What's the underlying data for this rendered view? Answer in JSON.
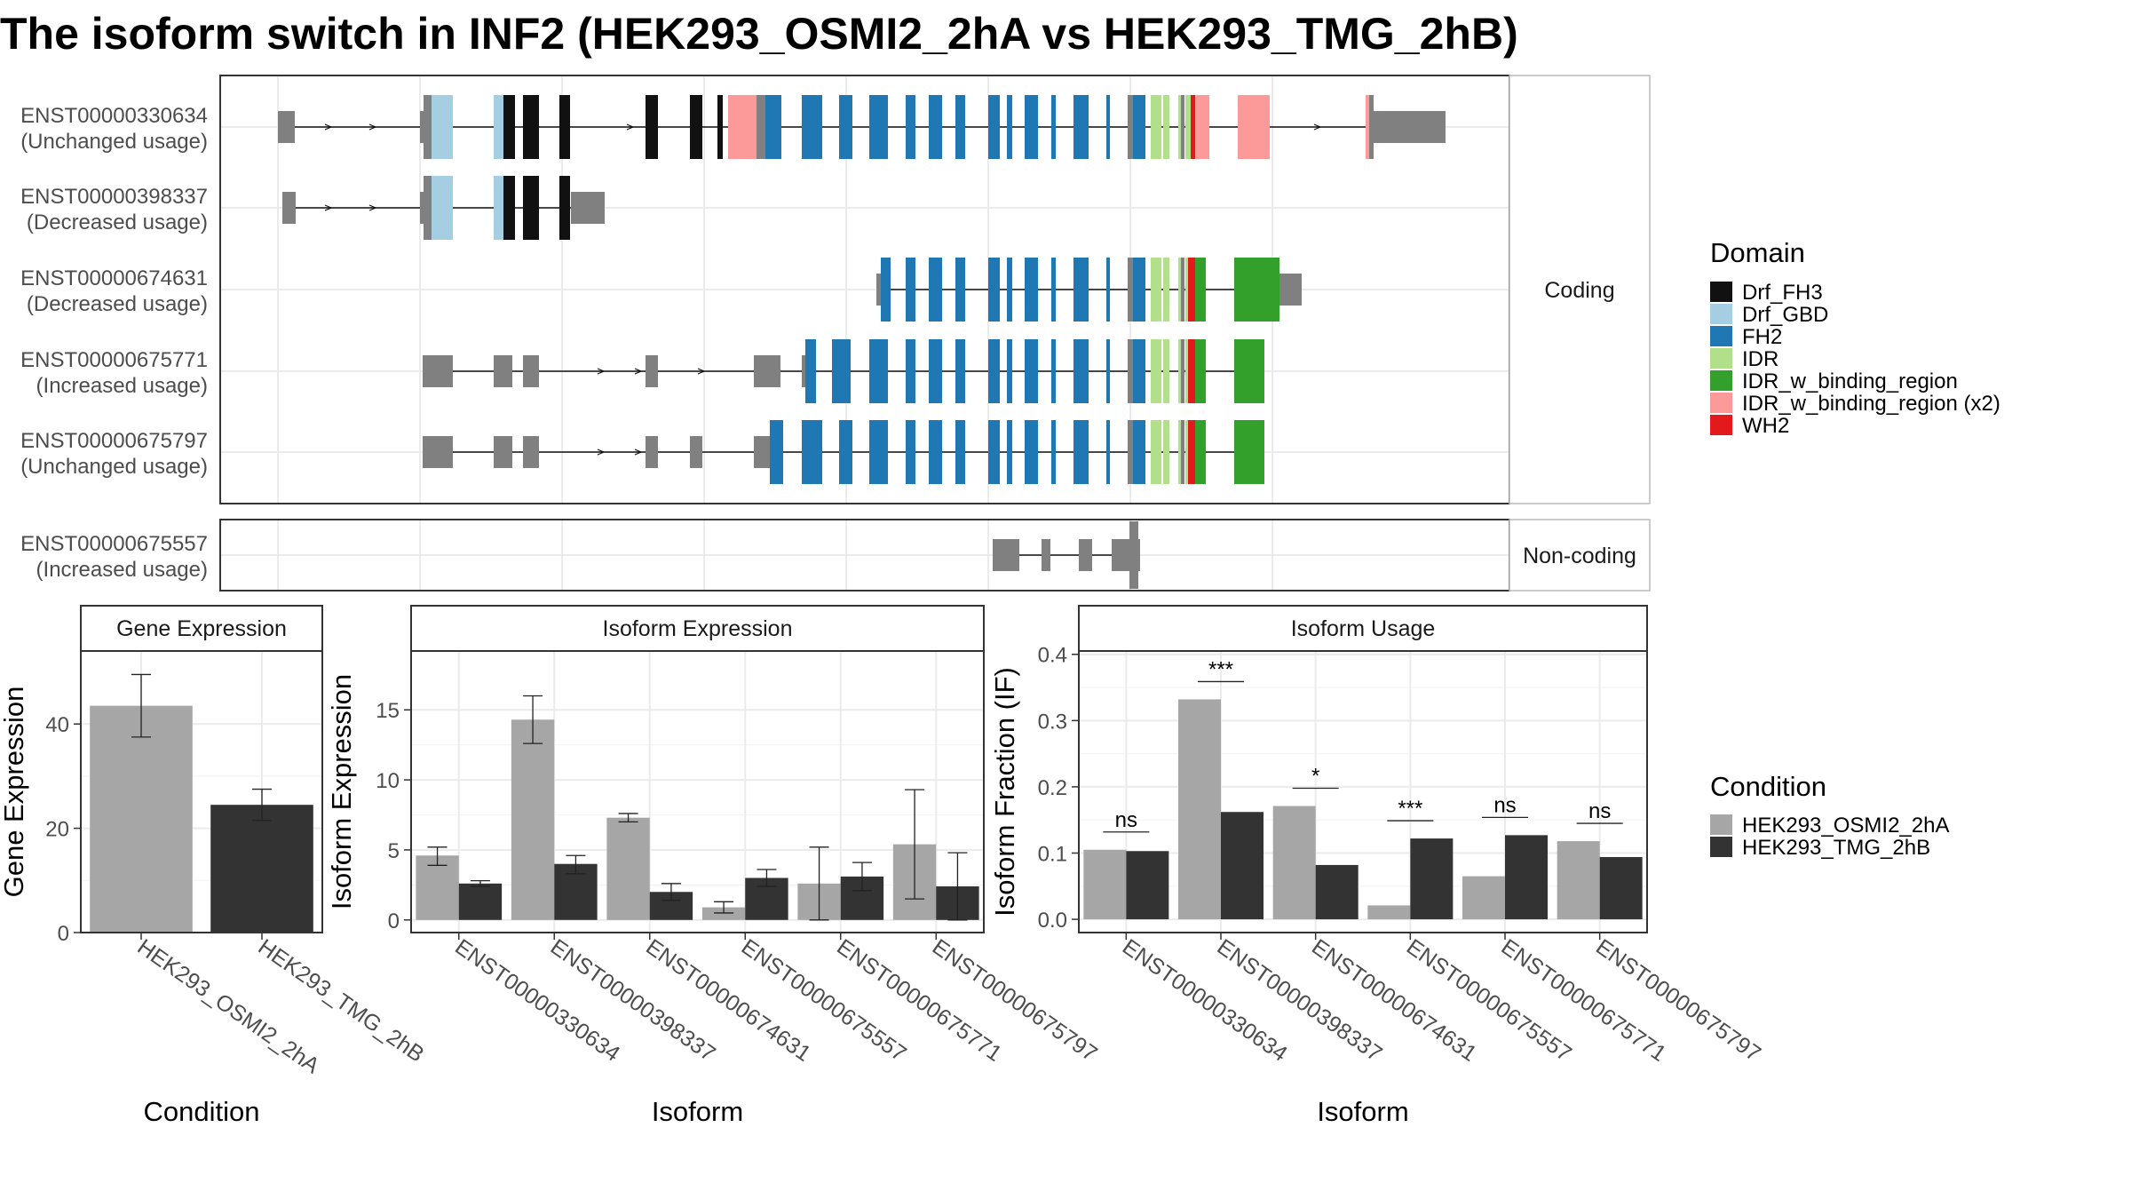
{
  "title": "The isoform switch in INF2 (HEK293_OSMI2_2hA vs HEK293_TMG_2hB)",
  "colors": {
    "condition_a": "#a6a6a6",
    "condition_b": "#333333",
    "utr": "#808080",
    "frame_stroke": "#333333",
    "grid": "#ebebeb"
  },
  "structure_panel": {
    "coding_strip": "Coding",
    "noncoding_strip": "Non-coding",
    "coding_transcripts": [
      {
        "id": "ENST00000330634",
        "status": "(Unchanged usage)"
      },
      {
        "id": "ENST00000398337",
        "status": "(Decreased usage)"
      },
      {
        "id": "ENST00000674631",
        "status": "(Decreased usage)"
      },
      {
        "id": "ENST00000675771",
        "status": "(Increased usage)"
      },
      {
        "id": "ENST00000675797",
        "status": "(Unchanged usage)"
      }
    ],
    "noncoding_transcripts": [
      {
        "id": "ENST00000675557",
        "status": "(Increased usage)"
      }
    ]
  },
  "domain_legend": {
    "title": "Domain",
    "items": [
      {
        "label": "Drf_FH3",
        "color": "#111111"
      },
      {
        "label": "Drf_GBD",
        "color": "#a6cee3"
      },
      {
        "label": "FH2",
        "color": "#1f78b4"
      },
      {
        "label": "IDR",
        "color": "#b2df8a"
      },
      {
        "label": "IDR_w_binding_region",
        "color": "#33a02c"
      },
      {
        "label": "IDR_w_binding_region (x2)",
        "color": "#fb9a99"
      },
      {
        "label": "WH2",
        "color": "#e31a1c"
      }
    ]
  },
  "condition_legend": {
    "title": "Condition",
    "items": [
      {
        "label": "HEK293_OSMI2_2hA",
        "color": "#a6a6a6"
      },
      {
        "label": "HEK293_TMG_2hB",
        "color": "#333333"
      }
    ]
  },
  "chart_data": [
    {
      "type": "bar",
      "title": "Gene Expression",
      "xlabel": "Condition",
      "ylabel": "Gene Expression",
      "categories": [
        "HEK293_OSMI2_2hA",
        "HEK293_TMG_2hB"
      ],
      "values": [
        43.5,
        24.5
      ],
      "errors": [
        [
          37.5,
          49.5
        ],
        [
          21.5,
          27.5
        ]
      ],
      "yticks": [
        0,
        20,
        40
      ],
      "ylim": [
        0,
        54
      ],
      "grid": true
    },
    {
      "type": "bar",
      "title": "Isoform Expression",
      "xlabel": "Isoform",
      "ylabel": "Isoform Expression",
      "categories": [
        "ENST00000330634",
        "ENST00000398337",
        "ENST00000674631",
        "ENST00000675557",
        "ENST00000675771",
        "ENST00000675797"
      ],
      "series": [
        {
          "name": "HEK293_OSMI2_2hA",
          "values": [
            4.6,
            14.3,
            7.3,
            0.9,
            2.6,
            5.4
          ],
          "errors": [
            [
              3.9,
              5.2
            ],
            [
              12.6,
              16.0
            ],
            [
              7.0,
              7.6
            ],
            [
              0.5,
              1.3
            ],
            [
              0.0,
              5.2
            ],
            [
              1.5,
              9.3
            ]
          ]
        },
        {
          "name": "HEK293_TMG_2hB",
          "values": [
            2.6,
            4.0,
            2.0,
            3.0,
            3.1,
            2.4
          ],
          "errors": [
            [
              2.4,
              2.8
            ],
            [
              3.3,
              4.6
            ],
            [
              1.4,
              2.6
            ],
            [
              2.4,
              3.6
            ],
            [
              2.1,
              4.1
            ],
            [
              0.0,
              4.8
            ]
          ]
        }
      ],
      "yticks": [
        0,
        5,
        10,
        15
      ],
      "ylim": [
        -0.9,
        19.2
      ],
      "grid": true
    },
    {
      "type": "bar",
      "title": "Isoform Usage",
      "xlabel": "Isoform",
      "ylabel": "Isoform Fraction (IF)",
      "categories": [
        "ENST00000330634",
        "ENST00000398337",
        "ENST00000674631",
        "ENST00000675557",
        "ENST00000675771",
        "ENST00000675797"
      ],
      "series": [
        {
          "name": "HEK293_OSMI2_2hA",
          "values": [
            0.105,
            0.332,
            0.171,
            0.021,
            0.065,
            0.118
          ]
        },
        {
          "name": "HEK293_TMG_2hB",
          "values": [
            0.103,
            0.162,
            0.082,
            0.122,
            0.127,
            0.094
          ]
        }
      ],
      "significance": [
        "ns",
        "***",
        "*",
        "***",
        "ns",
        "ns"
      ],
      "yticks": [
        0.0,
        0.1,
        0.2,
        0.3,
        0.4
      ],
      "ylim": [
        -0.02,
        0.405
      ],
      "grid": true
    }
  ]
}
